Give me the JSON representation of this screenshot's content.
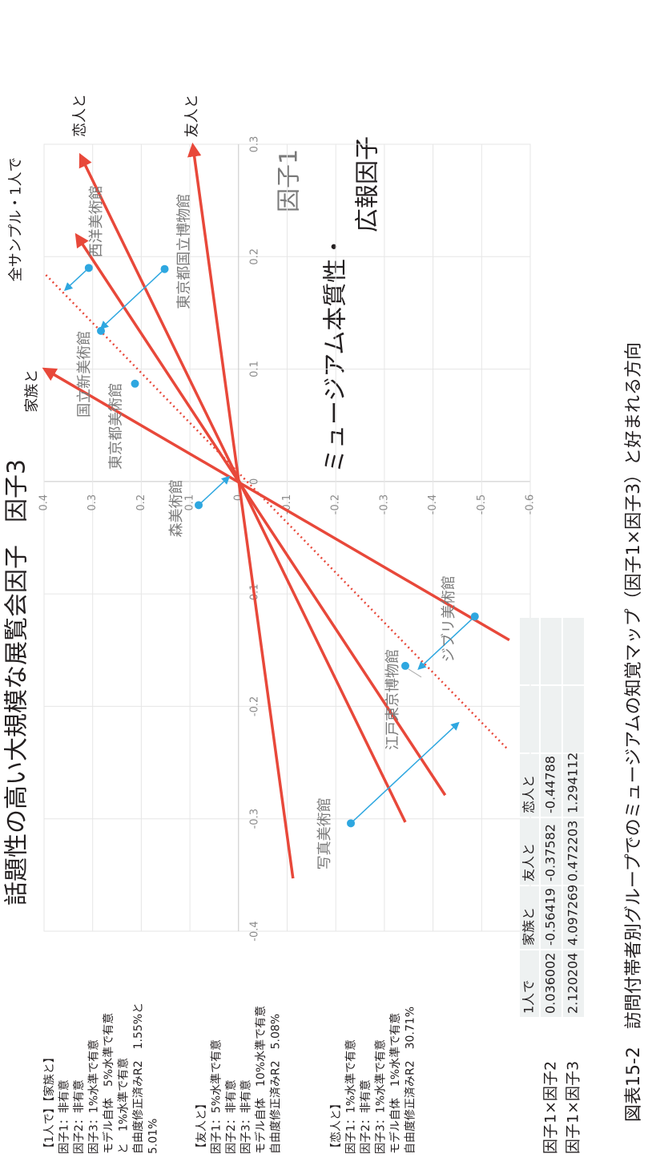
{
  "chart_data": {
    "type": "vector_map",
    "title": "話題性の高い大規模な展覧会因子",
    "y_axis_title": "因子3",
    "x_axis_title": "因子1",
    "right_title_lines": [
      "ミュージアム本質性・",
      "広報因子"
    ],
    "caption": "図表15-2　訪問付帯者別グループでのミュージアムの知覚マップ（因子1×因子3）と好まれる方向",
    "xlim": [
      -0.4,
      0.3
    ],
    "ylim": [
      -0.6,
      0.4
    ],
    "xticks": [
      -0.4,
      -0.3,
      -0.2,
      -0.1,
      0,
      0.1,
      0.2,
      0.3
    ],
    "yticks": [
      -0.6,
      -0.5,
      -0.4,
      -0.3,
      -0.2,
      -0.1,
      0,
      0.1,
      0.2,
      0.3,
      0.4
    ],
    "grid": true,
    "point_color": "#2ea7e0",
    "vector_color": "#e8483a",
    "points": [
      {
        "name": "西洋美術館",
        "x": 0.19,
        "y": 0.308,
        "arrow": true
      },
      {
        "name": "東京都国立博物館",
        "x": 0.189,
        "y": 0.152,
        "arrow": true
      },
      {
        "name": "国立新美術館",
        "x": 0.134,
        "y": 0.283,
        "arrow": false
      },
      {
        "name": "東京都美術館",
        "x": 0.087,
        "y": 0.213,
        "arrow": false
      },
      {
        "name": "森美術館",
        "x": -0.021,
        "y": 0.082,
        "arrow": true
      },
      {
        "name": "ジブリ美術館",
        "x": -0.12,
        "y": -0.486,
        "arrow": true
      },
      {
        "name": "江戸東京博物館",
        "x": -0.164,
        "y": -0.343,
        "arrow": false
      },
      {
        "name": "写真美術館",
        "x": -0.304,
        "y": -0.231,
        "arrow": true
      }
    ],
    "vectors": [
      {
        "name": "家族と",
        "x": 0.1,
        "y": 0.399,
        "tail_x": -0.141,
        "tail_y": -0.557,
        "style": "solid"
      },
      {
        "name": "恋人と",
        "x": 0.29,
        "y": 0.325,
        "tail_x": -0.303,
        "tail_y": -0.343,
        "style": "solid"
      },
      {
        "x": 0.219,
        "y": 0.333,
        "tail_x": -0.279,
        "tail_y": -0.425,
        "style": "solid"
      },
      {
        "name": "友人と",
        "x": 0.299,
        "y": 0.094,
        "tail_x": -0.353,
        "tail_y": -0.112,
        "style": "solid"
      },
      {
        "name": "全サンプル・1人で",
        "x": 0.185,
        "y": 0.399,
        "tail_x": -0.237,
        "tail_y": -0.551,
        "style": "dotted"
      }
    ]
  },
  "notes": [
    [
      "【1人で】【家族と】",
      "因子1：非有意",
      "因子2：非有意",
      "因子3：1%水準で有意",
      "モデル自体　5%水準で有意",
      "と　1%水準で有意",
      "自由度修正済みR2　1.55%と",
      "5.01%"
    ],
    [
      "【友人と】",
      "因子1：5%水準で有意",
      "因子2：非有意",
      "因子3：非有意",
      "モデル自体　10%水準で有意",
      "自由度修正済みR2　5.08%"
    ],
    [
      "【恋人と】",
      "因子1：1%水準で有意",
      "因子2：非有意",
      "因子3：1%水準で有意",
      "モデル自体　1%水準で有意",
      "自由度修正済みR2　30.71%"
    ]
  ],
  "table": {
    "header": [
      "1人で",
      "家族と",
      "友人と",
      "恋人と"
    ],
    "rows": [
      {
        "label": "因子1×因子2",
        "cells": [
          0.036002,
          -0.56419,
          -0.37582,
          -0.44788
        ]
      },
      {
        "label": "因子1×因子3",
        "cells": [
          2.120204,
          4.097269,
          0.472203,
          1.294112
        ]
      }
    ]
  }
}
